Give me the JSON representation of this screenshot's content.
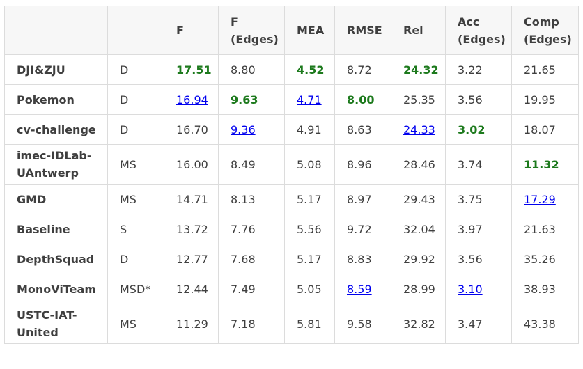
{
  "columns": [
    "",
    "",
    "F",
    "F\n(Edges)",
    "MEA",
    "RMSE",
    "Rel",
    "Acc\n(Edges)",
    "Comp\n(Edges)"
  ],
  "rows": [
    {
      "team": "DJI&ZJU",
      "type": "D",
      "values": [
        "17.51",
        "8.80",
        "4.52",
        "8.72",
        "24.32",
        "3.22",
        "21.65"
      ],
      "marks": [
        "best",
        "",
        "best",
        "",
        "best",
        "",
        ""
      ]
    },
    {
      "team": "Pokemon",
      "type": "D",
      "values": [
        "16.94",
        "9.63",
        "4.71",
        "8.00",
        "25.35",
        "3.56",
        "19.95"
      ],
      "marks": [
        "second",
        "best",
        "second",
        "best",
        "",
        "",
        ""
      ]
    },
    {
      "team": "cv-challenge",
      "type": "D",
      "values": [
        "16.70",
        "9.36",
        "4.91",
        "8.63",
        "24.33",
        "3.02",
        "18.07"
      ],
      "marks": [
        "",
        "second",
        "",
        "",
        "second",
        "best",
        ""
      ]
    },
    {
      "team": "imec-IDLab-UAntwerp",
      "type": "MS",
      "values": [
        "16.00",
        "8.49",
        "5.08",
        "8.96",
        "28.46",
        "3.74",
        "11.32"
      ],
      "marks": [
        "",
        "",
        "",
        "",
        "",
        "",
        "best"
      ]
    },
    {
      "team": "GMD",
      "type": "MS",
      "values": [
        "14.71",
        "8.13",
        "5.17",
        "8.97",
        "29.43",
        "3.75",
        "17.29"
      ],
      "marks": [
        "",
        "",
        "",
        "",
        "",
        "",
        "second"
      ]
    },
    {
      "team": "Baseline",
      "type": "S",
      "values": [
        "13.72",
        "7.76",
        "5.56",
        "9.72",
        "32.04",
        "3.97",
        "21.63"
      ],
      "marks": [
        "",
        "",
        "",
        "",
        "",
        "",
        ""
      ]
    },
    {
      "team": "DepthSquad",
      "type": "D",
      "values": [
        "12.77",
        "7.68",
        "5.17",
        "8.83",
        "29.92",
        "3.56",
        "35.26"
      ],
      "marks": [
        "",
        "",
        "",
        "",
        "",
        "",
        ""
      ]
    },
    {
      "team": "MonoViTeam",
      "type": "MSD*",
      "values": [
        "12.44",
        "7.49",
        "5.05",
        "8.59",
        "28.99",
        "3.10",
        "38.93"
      ],
      "marks": [
        "",
        "",
        "",
        "second",
        "",
        "second",
        ""
      ]
    },
    {
      "team": "USTC-IAT-United",
      "type": "MS",
      "values": [
        "11.29",
        "7.18",
        "5.81",
        "9.58",
        "32.82",
        "3.47",
        "43.38"
      ],
      "marks": [
        "",
        "",
        "",
        "",
        "",
        "",
        ""
      ]
    }
  ],
  "colors": {
    "best": "#1d7a1d",
    "second": "#0000ee",
    "header_bg": "#f7f7f7",
    "border": "#dcdcdc",
    "text": "#3f3f3f"
  }
}
